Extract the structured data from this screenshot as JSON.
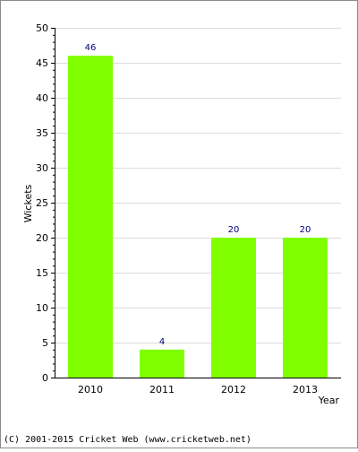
{
  "chart_data": {
    "type": "bar",
    "categories": [
      "2010",
      "2011",
      "2012",
      "2013"
    ],
    "values": [
      46,
      4,
      20,
      20
    ],
    "data_labels": [
      "46",
      "4",
      "20",
      "20"
    ],
    "title": "",
    "xlabel": "Year",
    "ylabel": "Wickets",
    "ylim": [
      0,
      50
    ],
    "yticks": [
      0,
      5,
      10,
      15,
      20,
      25,
      30,
      35,
      40,
      45,
      50
    ],
    "grid": true,
    "bar_color": "#80ff00",
    "label_color": "#00007c",
    "grid_color": "#dcdcdc"
  },
  "footer": {
    "copyright": "(C) 2001-2015 Cricket Web (www.cricketweb.net)"
  }
}
